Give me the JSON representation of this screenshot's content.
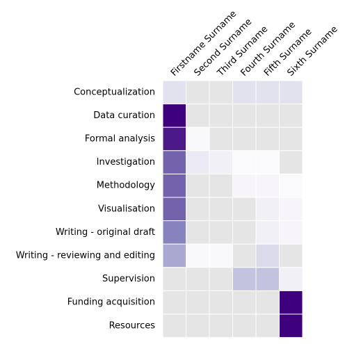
{
  "chart_data": {
    "type": "heatmap",
    "title": "",
    "xlabel": "",
    "ylabel": "",
    "columns": [
      "Firstname Surname",
      "Second Surname",
      "Third Surname",
      "Fourth Surname",
      "Fifth Surname",
      "Sixth Surname"
    ],
    "rows": [
      "Conceptualization",
      "Data curation",
      "Formal analysis",
      "Investigation",
      "Methodology",
      "Visualisation",
      "Writing - original draft",
      "Writing - reviewing and editing",
      "Supervision",
      "Funding acquisition",
      "Resources"
    ],
    "values": [
      [
        0.2,
        0.0,
        0.0,
        0.2,
        0.2,
        0.2
      ],
      [
        1.0,
        0.0,
        0.0,
        0.0,
        0.0,
        0.0
      ],
      [
        0.92,
        0.03,
        0.0,
        0.0,
        0.0,
        0.0
      ],
      [
        0.7,
        0.15,
        0.1,
        0.02,
        0.02,
        0.0
      ],
      [
        0.7,
        0.0,
        0.0,
        0.05,
        0.05,
        0.02
      ],
      [
        0.7,
        0.0,
        0.0,
        0.0,
        0.1,
        0.05
      ],
      [
        0.6,
        0.0,
        0.0,
        0.0,
        0.1,
        0.05
      ],
      [
        0.45,
        0.03,
        0.03,
        0.0,
        0.25,
        0.0
      ],
      [
        0.0,
        0.0,
        0.0,
        0.35,
        0.35,
        0.1
      ],
      [
        0.0,
        0.0,
        0.0,
        0.0,
        0.0,
        1.0
      ],
      [
        0.0,
        0.0,
        0.0,
        0.0,
        0.0,
        1.0
      ]
    ],
    "colormap": "Purples",
    "zero_color": "#e5e5e5",
    "grid": true
  }
}
